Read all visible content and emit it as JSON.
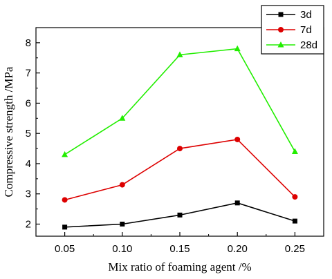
{
  "chart_data": {
    "type": "line",
    "x": [
      0.05,
      0.1,
      0.15,
      0.2,
      0.25
    ],
    "x_tick_labels": [
      "0.05",
      "0.10",
      "0.15",
      "0.20",
      "0.25"
    ],
    "y_tick_labels": [
      "2",
      "3",
      "4",
      "5",
      "6",
      "7",
      "8"
    ],
    "xlabel": "Mix ratio of foaming agent /%",
    "ylabel": "Compressive strength /MPa",
    "xlim": [
      0.025,
      0.275
    ],
    "ylim": [
      1.6,
      8.5
    ],
    "grid": false,
    "legend_position": "top-right",
    "series": [
      {
        "name": "3d",
        "color": "#000000",
        "marker": "square",
        "values": [
          1.9,
          2.0,
          2.3,
          2.7,
          2.1
        ]
      },
      {
        "name": "7d",
        "color": "#dd0000",
        "marker": "circle",
        "values": [
          2.8,
          3.3,
          4.5,
          4.8,
          2.9
        ]
      },
      {
        "name": "28d",
        "color": "#22ee00",
        "marker": "triangle",
        "values": [
          4.3,
          5.5,
          7.6,
          7.8,
          4.4
        ]
      }
    ]
  }
}
